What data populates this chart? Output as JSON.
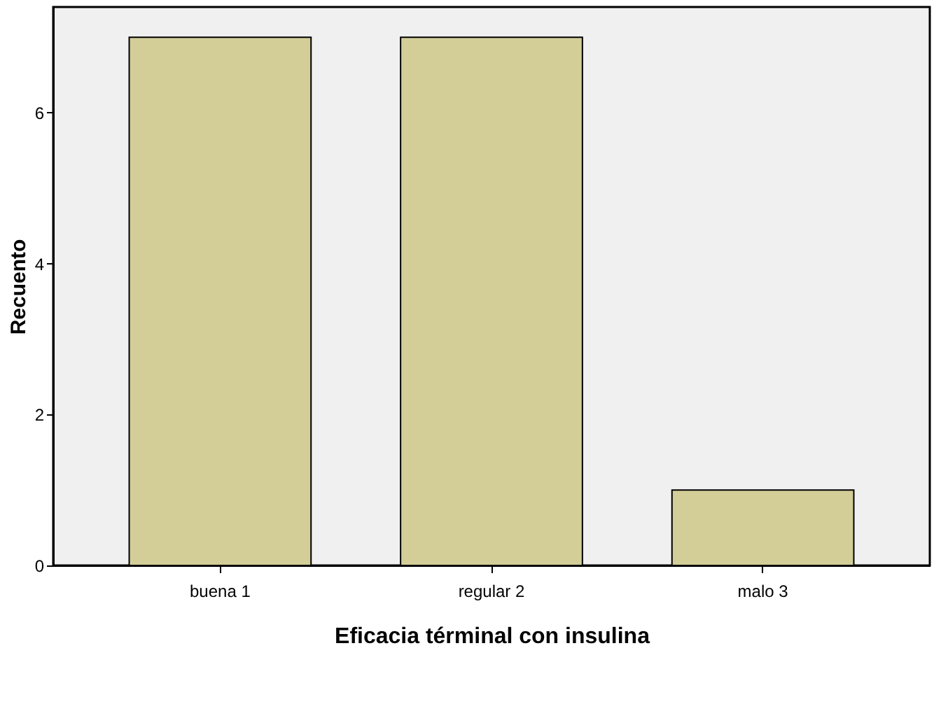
{
  "chart_data": {
    "type": "bar",
    "xlabel": "Eficacia términal con insulina",
    "ylabel": "Recuento",
    "categories": [
      "buena 1",
      "regular 2",
      "malo 3"
    ],
    "values": [
      7,
      7,
      1
    ],
    "color": "#d3ce98",
    "ylim": [
      0,
      7.4
    ],
    "yticks": [
      0,
      2,
      4,
      6
    ],
    "grid": false
  }
}
